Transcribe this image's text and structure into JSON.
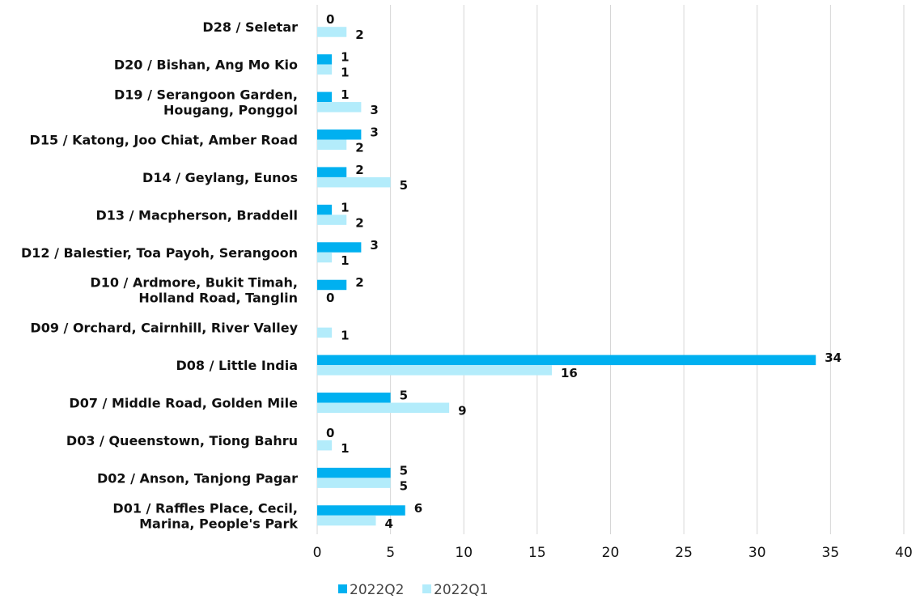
{
  "chart_data": {
    "type": "bar",
    "orientation": "horizontal",
    "categories": [
      [
        "D28 / Seletar"
      ],
      [
        "D20 / Bishan, Ang Mo Kio"
      ],
      [
        "D19 / Serangoon Garden,",
        "Hougang, Ponggol"
      ],
      [
        "D15 / Katong, Joo Chiat, Amber Road"
      ],
      [
        "D14 / Geylang, Eunos"
      ],
      [
        "D13 / Macpherson, Braddell"
      ],
      [
        "D12 / Balestier, Toa Payoh, Serangoon"
      ],
      [
        "D10 / Ardmore, Bukit Timah,",
        "Holland Road, Tanglin"
      ],
      [
        "D09 / Orchard, Cairnhill, River Valley"
      ],
      [
        "D08 / Little India"
      ],
      [
        "D07 / Middle Road, Golden Mile"
      ],
      [
        "D03 / Queenstown, Tiong Bahru"
      ],
      [
        "D02 / Anson, Tanjong Pagar"
      ],
      [
        "D01 / Raffles Place, Cecil,",
        "Marina, People's Park"
      ]
    ],
    "series": [
      {
        "name": "2022Q2",
        "color": "#00b0f0",
        "values": [
          0,
          1,
          1,
          3,
          2,
          1,
          3,
          2,
          null,
          34,
          5,
          0,
          5,
          6
        ],
        "labels": [
          "0",
          "1",
          "1",
          "3",
          "2",
          "1",
          "3",
          "2",
          "",
          "34",
          "5",
          "0",
          "5",
          "6"
        ]
      },
      {
        "name": "2022Q1",
        "color": "#b3ecfb",
        "values": [
          2,
          1,
          3,
          2,
          5,
          2,
          1,
          0,
          1,
          16,
          9,
          1,
          5,
          4
        ],
        "labels": [
          "2",
          "1",
          "3",
          "2",
          "5",
          "2",
          "1",
          "0",
          "1",
          "16",
          "9",
          "1",
          "5",
          "4"
        ]
      }
    ],
    "xlim": [
      0,
      40
    ],
    "xticks": [
      "0",
      "5",
      "10",
      "15",
      "20",
      "25",
      "30",
      "35",
      "40"
    ],
    "grid": true,
    "legend_position": "bottom"
  }
}
